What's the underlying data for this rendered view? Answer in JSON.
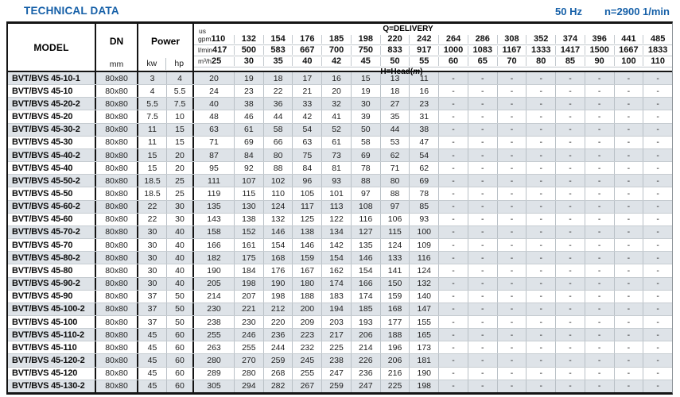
{
  "header": {
    "title": "TECHNICAL DATA",
    "frequency": "50 Hz",
    "speed": "n=2900 1/min"
  },
  "table": {
    "columns": {
      "model": "MODEL",
      "dn": "DN",
      "dn_unit": "mm",
      "power": "Power",
      "power_units": [
        "kw",
        "hp"
      ]
    },
    "delivery": {
      "label": "Q=DELIVERY",
      "head_prefix": "H=Head(",
      "head_m": "m",
      "head_suffix": ")",
      "units": {
        "gpm_top": "us",
        "gpm": "gpm",
        "lmin": "l/min",
        "m3h": "m³/h"
      },
      "us_gpm": [
        "110",
        "132",
        "154",
        "176",
        "185",
        "198",
        "220",
        "242",
        "264",
        "286",
        "308",
        "352",
        "374",
        "396",
        "441",
        "485"
      ],
      "l_min": [
        "417",
        "500",
        "583",
        "667",
        "700",
        "750",
        "833",
        "917",
        "1000",
        "1083",
        "1167",
        "1333",
        "1417",
        "1500",
        "1667",
        "1833"
      ],
      "m3_h": [
        "25",
        "30",
        "35",
        "40",
        "42",
        "45",
        "50",
        "55",
        "60",
        "65",
        "70",
        "80",
        "85",
        "90",
        "100",
        "110"
      ]
    },
    "rows": [
      {
        "model": "BVT/BVS 45-10-1",
        "dn": "80x80",
        "kw": "3",
        "hp": "4",
        "heads": [
          "20",
          "19",
          "18",
          "17",
          "16",
          "15",
          "13",
          "11",
          "-",
          "-",
          "-",
          "-",
          "-",
          "-",
          "-",
          "-"
        ]
      },
      {
        "model": "BVT/BVS 45-10",
        "dn": "80x80",
        "kw": "4",
        "hp": "5.5",
        "heads": [
          "24",
          "23",
          "22",
          "21",
          "20",
          "19",
          "18",
          "16",
          "-",
          "-",
          "-",
          "-",
          "-",
          "-",
          "-",
          "-"
        ]
      },
      {
        "model": "BVT/BVS 45-20-2",
        "dn": "80x80",
        "kw": "5.5",
        "hp": "7.5",
        "heads": [
          "40",
          "38",
          "36",
          "33",
          "32",
          "30",
          "27",
          "23",
          "-",
          "-",
          "-",
          "-",
          "-",
          "-",
          "-",
          "-"
        ]
      },
      {
        "model": "BVT/BVS 45-20",
        "dn": "80x80",
        "kw": "7.5",
        "hp": "10",
        "heads": [
          "48",
          "46",
          "44",
          "42",
          "41",
          "39",
          "35",
          "31",
          "-",
          "-",
          "-",
          "-",
          "-",
          "-",
          "-",
          "-"
        ]
      },
      {
        "model": "BVT/BVS 45-30-2",
        "dn": "80x80",
        "kw": "11",
        "hp": "15",
        "heads": [
          "63",
          "61",
          "58",
          "54",
          "52",
          "50",
          "44",
          "38",
          "-",
          "-",
          "-",
          "-",
          "-",
          "-",
          "-",
          "-"
        ]
      },
      {
        "model": "BVT/BVS 45-30",
        "dn": "80x80",
        "kw": "11",
        "hp": "15",
        "heads": [
          "71",
          "69",
          "66",
          "63",
          "61",
          "58",
          "53",
          "47",
          "-",
          "-",
          "-",
          "-",
          "-",
          "-",
          "-",
          "-"
        ]
      },
      {
        "model": "BVT/BVS 45-40-2",
        "dn": "80x80",
        "kw": "15",
        "hp": "20",
        "heads": [
          "87",
          "84",
          "80",
          "75",
          "73",
          "69",
          "62",
          "54",
          "-",
          "-",
          "-",
          "-",
          "-",
          "-",
          "-",
          "-"
        ]
      },
      {
        "model": "BVT/BVS 45-40",
        "dn": "80x80",
        "kw": "15",
        "hp": "20",
        "heads": [
          "95",
          "92",
          "88",
          "84",
          "81",
          "78",
          "71",
          "62",
          "-",
          "-",
          "-",
          "-",
          "-",
          "-",
          "-",
          "-"
        ]
      },
      {
        "model": "BVT/BVS 45-50-2",
        "dn": "80x80",
        "kw": "18.5",
        "hp": "25",
        "heads": [
          "111",
          "107",
          "102",
          "96",
          "93",
          "88",
          "80",
          "69",
          "-",
          "-",
          "-",
          "-",
          "-",
          "-",
          "-",
          "-"
        ]
      },
      {
        "model": "BVT/BVS 45-50",
        "dn": "80x80",
        "kw": "18.5",
        "hp": "25",
        "heads": [
          "119",
          "115",
          "110",
          "105",
          "101",
          "97",
          "88",
          "78",
          "-",
          "-",
          "-",
          "-",
          "-",
          "-",
          "-",
          "-"
        ]
      },
      {
        "model": "BVT/BVS 45-60-2",
        "dn": "80x80",
        "kw": "22",
        "hp": "30",
        "heads": [
          "135",
          "130",
          "124",
          "117",
          "113",
          "108",
          "97",
          "85",
          "-",
          "-",
          "-",
          "-",
          "-",
          "-",
          "-",
          "-"
        ]
      },
      {
        "model": "BVT/BVS 45-60",
        "dn": "80x80",
        "kw": "22",
        "hp": "30",
        "heads": [
          "143",
          "138",
          "132",
          "125",
          "122",
          "116",
          "106",
          "93",
          "-",
          "-",
          "-",
          "-",
          "-",
          "-",
          "-",
          "-"
        ]
      },
      {
        "model": "BVT/BVS 45-70-2",
        "dn": "80x80",
        "kw": "30",
        "hp": "40",
        "heads": [
          "158",
          "152",
          "146",
          "138",
          "134",
          "127",
          "115",
          "100",
          "-",
          "-",
          "-",
          "-",
          "-",
          "-",
          "-",
          "-"
        ]
      },
      {
        "model": "BVT/BVS 45-70",
        "dn": "80x80",
        "kw": "30",
        "hp": "40",
        "heads": [
          "166",
          "161",
          "154",
          "146",
          "142",
          "135",
          "124",
          "109",
          "-",
          "-",
          "-",
          "-",
          "-",
          "-",
          "-",
          "-"
        ]
      },
      {
        "model": "BVT/BVS 45-80-2",
        "dn": "80x80",
        "kw": "30",
        "hp": "40",
        "heads": [
          "182",
          "175",
          "168",
          "159",
          "154",
          "146",
          "133",
          "116",
          "-",
          "-",
          "-",
          "-",
          "-",
          "-",
          "-",
          "-"
        ]
      },
      {
        "model": "BVT/BVS 45-80",
        "dn": "80x80",
        "kw": "30",
        "hp": "40",
        "heads": [
          "190",
          "184",
          "176",
          "167",
          "162",
          "154",
          "141",
          "124",
          "-",
          "-",
          "-",
          "-",
          "-",
          "-",
          "-",
          "-"
        ]
      },
      {
        "model": "BVT/BVS 45-90-2",
        "dn": "80x80",
        "kw": "30",
        "hp": "40",
        "heads": [
          "205",
          "198",
          "190",
          "180",
          "174",
          "166",
          "150",
          "132",
          "-",
          "-",
          "-",
          "-",
          "-",
          "-",
          "-",
          "-"
        ]
      },
      {
        "model": "BVT/BVS 45-90",
        "dn": "80x80",
        "kw": "37",
        "hp": "50",
        "heads": [
          "214",
          "207",
          "198",
          "188",
          "183",
          "174",
          "159",
          "140",
          "-",
          "-",
          "-",
          "-",
          "-",
          "-",
          "-",
          "-"
        ]
      },
      {
        "model": "BVT/BVS 45-100-2",
        "dn": "80x80",
        "kw": "37",
        "hp": "50",
        "heads": [
          "230",
          "221",
          "212",
          "200",
          "194",
          "185",
          "168",
          "147",
          "-",
          "-",
          "-",
          "-",
          "-",
          "-",
          "-",
          "-"
        ]
      },
      {
        "model": "BVT/BVS 45-100",
        "dn": "80x80",
        "kw": "37",
        "hp": "50",
        "heads": [
          "238",
          "230",
          "220",
          "209",
          "203",
          "193",
          "177",
          "155",
          "-",
          "-",
          "-",
          "-",
          "-",
          "-",
          "-",
          "-"
        ]
      },
      {
        "model": "BVT/BVS 45-110-2",
        "dn": "80x80",
        "kw": "45",
        "hp": "60",
        "heads": [
          "255",
          "246",
          "236",
          "223",
          "217",
          "206",
          "188",
          "165",
          "-",
          "-",
          "-",
          "-",
          "-",
          "-",
          "-",
          "-"
        ]
      },
      {
        "model": "BVT/BVS 45-110",
        "dn": "80x80",
        "kw": "45",
        "hp": "60",
        "heads": [
          "263",
          "255",
          "244",
          "232",
          "225",
          "214",
          "196",
          "173",
          "-",
          "-",
          "-",
          "-",
          "-",
          "-",
          "-",
          "-"
        ]
      },
      {
        "model": "BVT/BVS 45-120-2",
        "dn": "80x80",
        "kw": "45",
        "hp": "60",
        "heads": [
          "280",
          "270",
          "259",
          "245",
          "238",
          "226",
          "206",
          "181",
          "-",
          "-",
          "-",
          "-",
          "-",
          "-",
          "-",
          "-"
        ]
      },
      {
        "model": "BVT/BVS 45-120",
        "dn": "80x80",
        "kw": "45",
        "hp": "60",
        "heads": [
          "289",
          "280",
          "268",
          "255",
          "247",
          "236",
          "216",
          "190",
          "-",
          "-",
          "-",
          "-",
          "-",
          "-",
          "-",
          "-"
        ]
      },
      {
        "model": "BVT/BVS 45-130-2",
        "dn": "80x80",
        "kw": "45",
        "hp": "60",
        "heads": [
          "305",
          "294",
          "282",
          "267",
          "259",
          "247",
          "225",
          "198",
          "-",
          "-",
          "-",
          "-",
          "-",
          "-",
          "-",
          "-"
        ]
      }
    ]
  }
}
